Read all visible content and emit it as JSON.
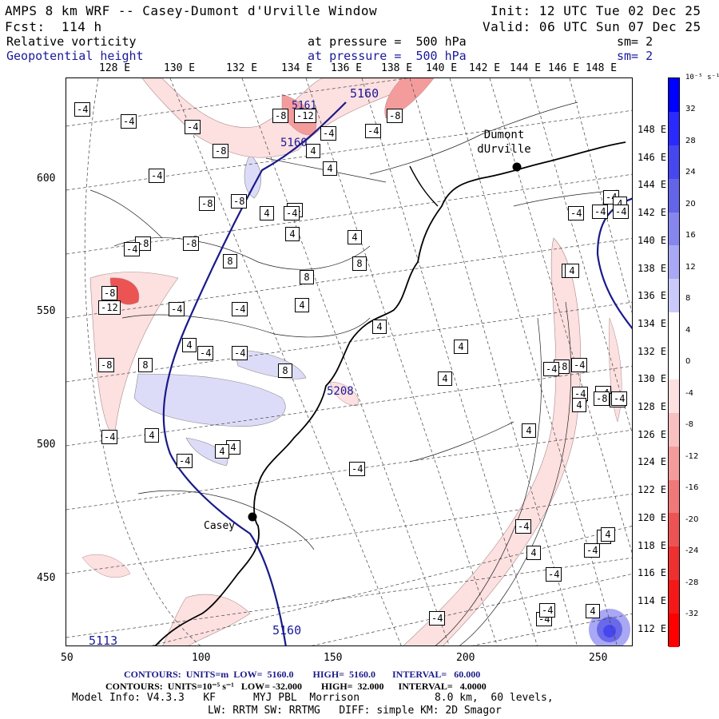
{
  "header": {
    "line1_left": "AMPS 8 km WRF -- Casey-Dumont d'Urville Window",
    "line1_right": "Init: 12 UTC Tue 02 Dec 25",
    "line2_left": "Fcst:  114 h",
    "line2_right": "Valid: 06 UTC Sun 07 Dec 25",
    "field1_name": "Relative vorticity",
    "field1_level": "at pressure =  500 hPa",
    "field1_smooth": "sm= 2",
    "field2_name": "Geopotential height",
    "field2_level": "at pressure =  500 hPa",
    "field2_smooth": "sm= 2"
  },
  "axes": {
    "lon_labels": [
      "128 E",
      "130 E",
      "132 E",
      "134 E",
      "136 E",
      "138 E",
      "140 E",
      "142 E",
      "144 E",
      "146 E",
      "148 E"
    ],
    "y_ticks": [
      "600",
      "550",
      "500",
      "450"
    ],
    "x_ticks": [
      "50",
      "100",
      "150",
      "200",
      "250"
    ],
    "lat_labels_right": [
      "148 E",
      "146 E",
      "144 E",
      "142 E",
      "140 E",
      "138 E",
      "136 E",
      "134 E",
      "132 E",
      "130 E",
      "128 E",
      "126 E",
      "124 E",
      "122 E",
      "120 E",
      "118 E",
      "116 E",
      "114 E",
      "112 E"
    ]
  },
  "colorbar": {
    "unit_label": "10⁻⁵ s⁻¹",
    "ticks": [
      "32",
      "28",
      "24",
      "20",
      "16",
      "12",
      "8",
      "4",
      "0",
      "-4",
      "-8",
      "-12",
      "-16",
      "-20",
      "-24",
      "-28",
      "-32"
    ],
    "colors": [
      "#0000ff",
      "#2a2aff",
      "#4747f0",
      "#6464e8",
      "#8686ee",
      "#a8a8f4",
      "#cacafa",
      "#ffffff",
      "#ffffff",
      "#fde0e0",
      "#f8c0c0",
      "#f49c9c",
      "#f07878",
      "#ec5454",
      "#ee3030",
      "#f51818",
      "#ff0000"
    ]
  },
  "map": {
    "stations": [
      {
        "name": "Dumont\ndUrville",
        "label": "Dumont dUrville"
      },
      {
        "name": "Casey",
        "label": "Casey"
      }
    ],
    "height_labels": [
      "5160",
      "5160",
      "5208",
      "5160",
      "5113",
      "5161"
    ],
    "vort_labels": [
      "-4",
      "-4",
      "-4",
      "-4",
      "-8",
      "-12",
      "-8",
      "-4",
      "-8",
      "4",
      "-4",
      "-8",
      "4",
      "-4",
      "-8",
      "4",
      "-4",
      "-8",
      "-8",
      "4",
      "-4",
      "8",
      "8",
      "-4",
      "4",
      "8",
      "4",
      "-8",
      "-12",
      "-4",
      "4",
      "8",
      "-4",
      "-4",
      "8",
      "-8",
      "4",
      "4",
      "-4",
      "4",
      "-4",
      "-4",
      "4",
      "-8",
      "-4",
      "4",
      "4",
      "-4",
      "4",
      "-4",
      "-4",
      "-4",
      "-4",
      "4",
      "-4",
      "-4",
      "4",
      "4",
      "-4",
      "-4",
      "-8",
      "-4",
      "-4",
      "4",
      "-4",
      "-4",
      "4",
      "4",
      "-4",
      "-4",
      "-4",
      "4"
    ]
  },
  "footer": {
    "contours1": "CONTOURS:  UNITS=m  LOW=  5160.0        HIGH=  5160.0       INTERVAL=   60.000",
    "contours2": "CONTOURS:  UNITS=10⁻⁵ s⁻¹   LOW= -32.000        HIGH=  32.000      INTERVAL=   4.0000",
    "model_info": "Model Info: V4.3.3   KF      MYJ PBL  Morrison            8.0 km,  60 levels,",
    "physics": "LW: RRTM SW: RRTMG   DIFF: simple KM: 2D Smagor"
  }
}
